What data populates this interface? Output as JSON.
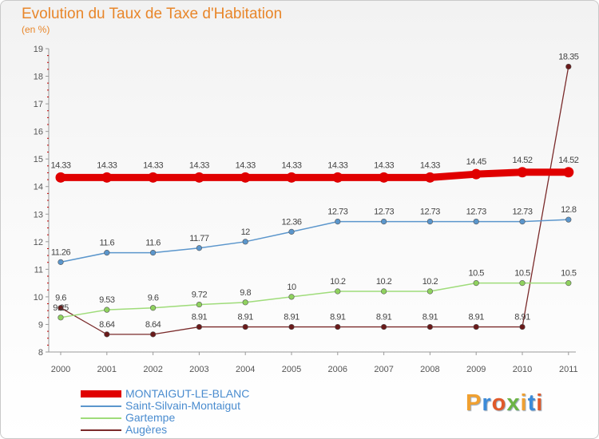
{
  "title": "Evolution du Taux de Taxe d'Habitation",
  "subtitle": "(en %)",
  "logo": "Proxiti",
  "chart_data": {
    "type": "line",
    "categories": [
      "2000",
      "2001",
      "2002",
      "2003",
      "2004",
      "2005",
      "2006",
      "2007",
      "2008",
      "2009",
      "2010",
      "2011"
    ],
    "ylim": [
      8,
      19
    ],
    "y_ticks": [
      "8",
      "9",
      "10",
      "11",
      "12",
      "13",
      "14",
      "15",
      "16",
      "17",
      "18",
      "19"
    ],
    "grid": false,
    "legend_position": "bottom-left",
    "series": [
      {
        "name": "MONTAIGUT-LE-BLANC",
        "color": "#e00000",
        "values": [
          14.33,
          14.33,
          14.33,
          14.33,
          14.33,
          14.33,
          14.33,
          14.33,
          14.33,
          14.45,
          14.52,
          14.52
        ],
        "labels": [
          "14.33",
          "14.33",
          "14.33",
          "14.33",
          "14.33",
          "14.33",
          "14.33",
          "14.33",
          "14.33",
          "14.45",
          "14.52",
          "14.52"
        ]
      },
      {
        "name": "Saint-Silvain-Montaigut",
        "color": "#5b96cc",
        "values": [
          11.26,
          11.6,
          11.6,
          11.77,
          12,
          12.36,
          12.73,
          12.73,
          12.73,
          12.73,
          12.73,
          12.8
        ],
        "labels": [
          "11.26",
          "11.6",
          "11.6",
          "11.77",
          "12",
          "12.36",
          "12.73",
          "12.73",
          "12.73",
          "12.73",
          "12.73",
          "12.8"
        ]
      },
      {
        "name": "Gartempe",
        "color": "#9fdc7a",
        "values": [
          9.25,
          9.53,
          9.6,
          9.72,
          9.8,
          10,
          10.2,
          10.2,
          10.2,
          10.5,
          10.5,
          10.5
        ],
        "labels": [
          "9.25",
          "9.53",
          "9.6",
          "9.72",
          "9.8",
          "10",
          "10.2",
          "10.2",
          "10.2",
          "10.5",
          "10.5",
          "10.5"
        ]
      },
      {
        "name": "Augères",
        "color": "#7a2a2a",
        "values": [
          9.6,
          8.64,
          8.64,
          8.91,
          8.91,
          8.91,
          8.91,
          8.91,
          8.91,
          8.91,
          8.91,
          18.35
        ],
        "labels": [
          "9.6",
          "8.64",
          "8.64",
          "8.91",
          "8.91",
          "8.91",
          "8.91",
          "8.91",
          "8.91",
          "8.91",
          "8.91",
          "18.35"
        ]
      }
    ]
  }
}
